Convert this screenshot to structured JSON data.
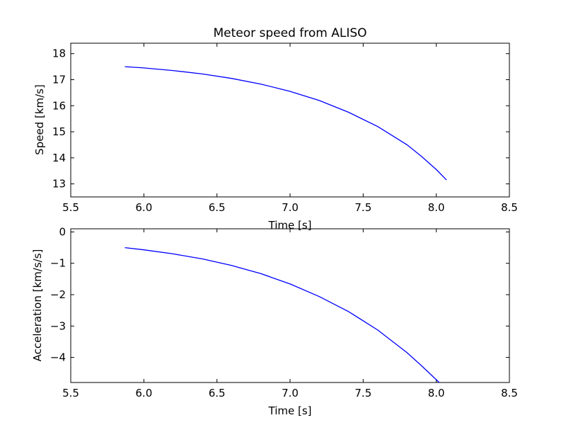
{
  "chart_data": [
    {
      "type": "line",
      "title": "Meteor speed from  ALISO",
      "xlabel": "Time [s]",
      "ylabel": "Speed [km/s]",
      "xlim": [
        5.5,
        8.5
      ],
      "ylim": [
        12.5,
        18.4
      ],
      "xticks": [
        "5.5",
        "6.0",
        "6.5",
        "7.0",
        "7.5",
        "8.0",
        "8.5"
      ],
      "yticks": [
        "13",
        "14",
        "15",
        "16",
        "17",
        "18"
      ],
      "line_color": "#0000ff",
      "series": [
        {
          "x": [
            5.87,
            6.0,
            6.2,
            6.4,
            6.6,
            6.8,
            7.0,
            7.2,
            7.4,
            7.6,
            7.8,
            7.9,
            8.0,
            8.07
          ],
          "y": [
            17.5,
            17.45,
            17.35,
            17.22,
            17.05,
            16.83,
            16.55,
            16.2,
            15.75,
            15.2,
            14.5,
            14.05,
            13.55,
            13.15
          ]
        }
      ]
    },
    {
      "type": "line",
      "title": "",
      "xlabel": "Time [s]",
      "ylabel": "Acceleration [km/s/s]",
      "xlim": [
        5.5,
        8.5
      ],
      "ylim": [
        -4.8,
        0.1
      ],
      "xticks": [
        "5.5",
        "6.0",
        "6.5",
        "7.0",
        "7.5",
        "8.0",
        "8.5"
      ],
      "yticks": [
        "0",
        "−1",
        "−2",
        "−3",
        "−4"
      ],
      "line_color": "#0000ff",
      "series": [
        {
          "x": [
            5.87,
            6.0,
            6.2,
            6.4,
            6.6,
            6.8,
            7.0,
            7.2,
            7.4,
            7.6,
            7.8,
            7.9,
            8.02
          ],
          "y": [
            -0.5,
            -0.57,
            -0.7,
            -0.86,
            -1.07,
            -1.33,
            -1.66,
            -2.06,
            -2.54,
            -3.13,
            -3.85,
            -4.27,
            -4.8
          ]
        }
      ]
    }
  ]
}
